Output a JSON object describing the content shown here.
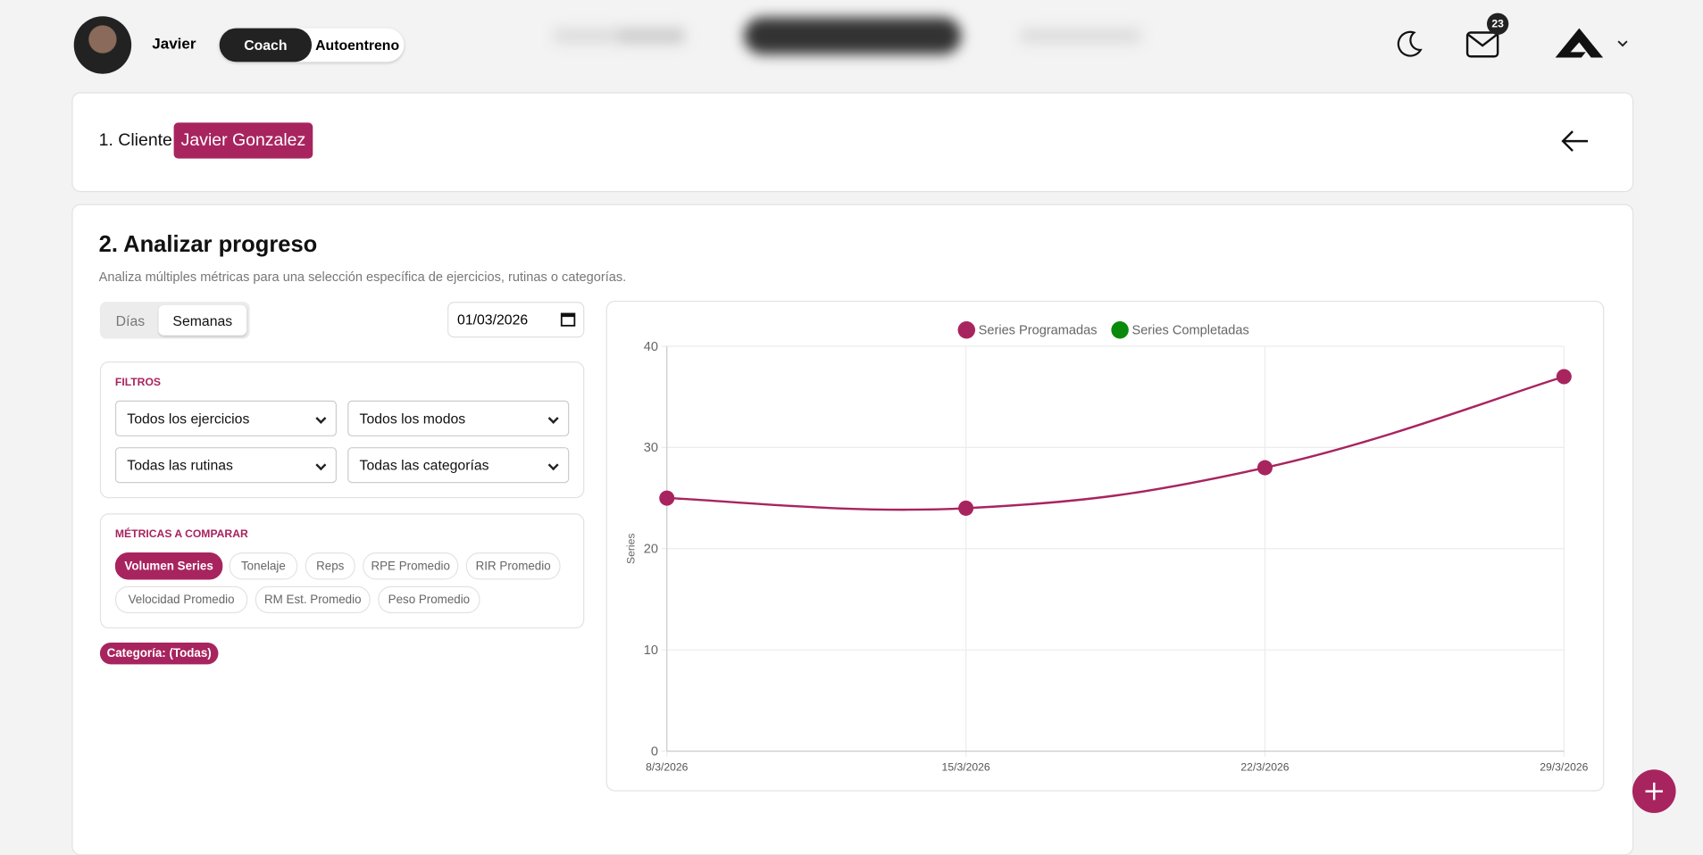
{
  "header": {
    "user": "Javier",
    "modes": [
      "Coach",
      "Autoentreno"
    ],
    "notifications": "23"
  },
  "client_section": {
    "label": "1. Cliente",
    "client": "Javier Gonzalez"
  },
  "analysis": {
    "title": "2. Analizar progreso",
    "subtitle": "Analiza múltiples métricas para una selección específica de ejercicios, rutinas o categorías.",
    "period_tabs": [
      "Días",
      "Semanas"
    ],
    "date": "01/03/2026",
    "filters_label": "FILTROS",
    "filters": [
      "Todos los ejercicios",
      "Todos los modos",
      "Todas las rutinas",
      "Todas las categorías"
    ],
    "metrics_label": "MÉTRICAS A COMPARAR",
    "metrics": [
      "Volumen Series",
      "Tonelaje",
      "Reps",
      "RPE Promedio",
      "RIR Promedio",
      "Velocidad Promedio",
      "RM Est. Promedio",
      "Peso Promedio"
    ],
    "category_chip": "Categoría: (Todas)"
  },
  "chart_data": {
    "type": "line",
    "ylabel": "Series",
    "categories": [
      "8/3/2026",
      "15/3/2026",
      "22/3/2026",
      "29/3/2026"
    ],
    "series": [
      {
        "name": "Series Programadas",
        "color": "#a8245f",
        "values": [
          25,
          24,
          28,
          37
        ]
      },
      {
        "name": "Series Completadas",
        "color": "#0a8a0a",
        "values": [
          null,
          null,
          null,
          null
        ]
      }
    ],
    "ylim": [
      0,
      40
    ],
    "yticks": [
      0,
      10,
      20,
      30,
      40
    ],
    "grid": true,
    "legend": "top"
  }
}
